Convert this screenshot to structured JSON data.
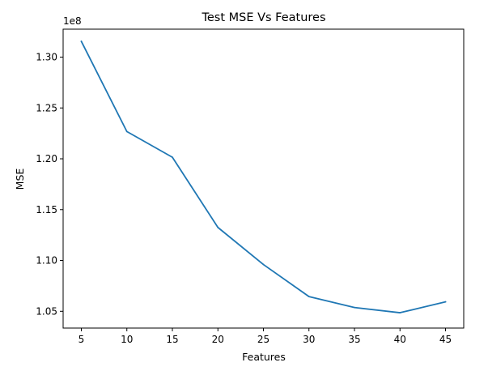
{
  "chart_data": {
    "type": "line",
    "title": "Test MSE Vs Features",
    "xlabel": "Features",
    "ylabel": "MSE",
    "y_multiplier_label": "1e8",
    "x": [
      5,
      10,
      15,
      20,
      25,
      30,
      35,
      40,
      45
    ],
    "series": [
      {
        "values": [
          1.3155,
          1.2268,
          1.2015,
          1.1325,
          1.096,
          1.0645,
          1.0537,
          1.0486,
          1.0593
        ],
        "color": "#1f77b4"
      }
    ],
    "xlim": [
      3,
      47
    ],
    "ylim": [
      1.0335,
      1.3275
    ],
    "xticks": [
      5,
      10,
      15,
      20,
      25,
      30,
      35,
      40,
      45
    ],
    "xtick_labels": [
      "5",
      "10",
      "15",
      "20",
      "25",
      "30",
      "35",
      "40",
      "45"
    ],
    "yticks": [
      1.05,
      1.1,
      1.15,
      1.2,
      1.25,
      1.3
    ],
    "ytick_labels": [
      "1.05",
      "1.10",
      "1.15",
      "1.20",
      "1.25",
      "1.30"
    ],
    "grid": false,
    "legend": "none"
  }
}
